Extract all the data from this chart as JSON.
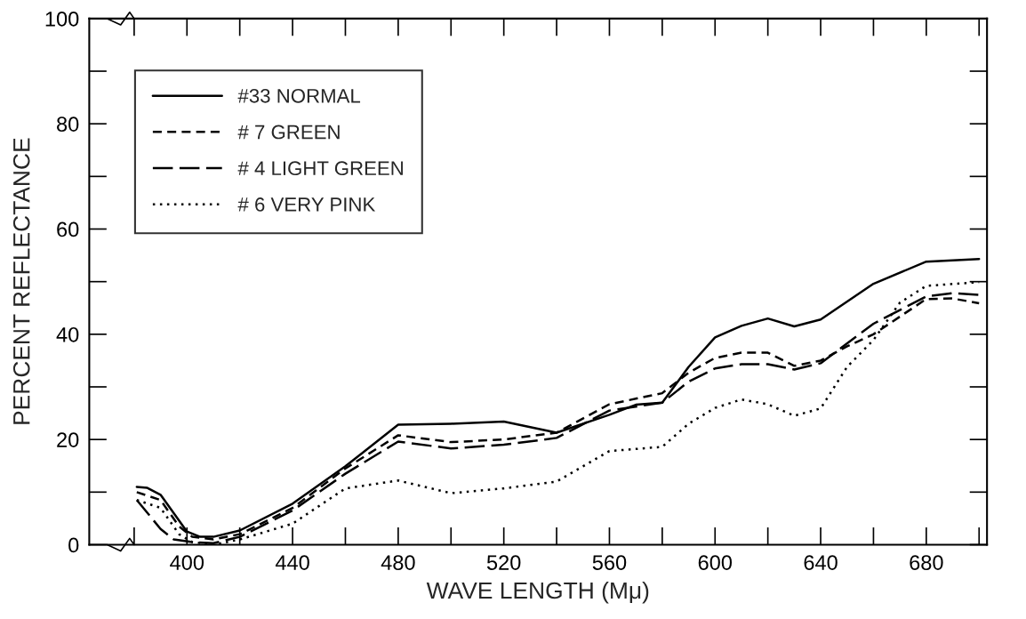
{
  "chart_data": {
    "type": "line",
    "xlabel": "WAVE LENGTH (Mμ)",
    "ylabel": "PERCENT REFLECTANCE",
    "xlim": [
      363,
      703
    ],
    "ylim": [
      0,
      100
    ],
    "xticks": [
      400,
      440,
      480,
      520,
      560,
      600,
      640,
      680
    ],
    "yticks": [
      0,
      20,
      40,
      60,
      80,
      100
    ],
    "grid": false,
    "legend": "top left",
    "series": [
      {
        "name": "#33 NORMAL",
        "color": "#000000",
        "line_style": "solid",
        "x": [
          381,
          385,
          390,
          395,
          400,
          405,
          410,
          420,
          440,
          460,
          480,
          500,
          520,
          540,
          560,
          570,
          580,
          590,
          600,
          610,
          620,
          630,
          640,
          660,
          680,
          700
        ],
        "values": [
          11,
          10.8,
          9.5,
          6,
          2.5,
          1.5,
          1.5,
          2.7,
          7.8,
          14.9,
          22.8,
          23,
          23.4,
          21.3,
          24.7,
          26.6,
          27,
          33.8,
          39.4,
          41.6,
          43,
          41.5,
          42.8,
          49.6,
          53.8,
          54.3
        ]
      },
      {
        "name": "# 7 GREEN",
        "color": "#000000",
        "line_style": "dashed",
        "x": [
          381,
          390,
          397,
          402,
          410,
          420,
          440,
          460,
          480,
          500,
          520,
          540,
          560,
          580,
          590,
          600,
          610,
          620,
          630,
          640,
          650,
          660,
          680,
          690,
          700
        ],
        "values": [
          10,
          8.5,
          3.5,
          1.5,
          1,
          2,
          7,
          14.5,
          20.8,
          19.5,
          20,
          21.3,
          26.7,
          28.8,
          32.7,
          35.5,
          36.5,
          36.5,
          34,
          35,
          37.7,
          40,
          46.7,
          46.8,
          45.9
        ]
      },
      {
        "name": "# 4 LIGHT GREEN",
        "color": "#000000",
        "line_style": "longdash",
        "x": [
          381,
          390,
          395,
          402,
          410,
          420,
          440,
          460,
          480,
          500,
          520,
          540,
          560,
          580,
          590,
          600,
          610,
          620,
          630,
          640,
          660,
          680,
          690,
          700
        ],
        "values": [
          8.5,
          3,
          1,
          0.5,
          0.3,
          1.5,
          6.5,
          13.5,
          19.6,
          18.3,
          19,
          20.3,
          25.5,
          27,
          31,
          33.5,
          34.3,
          34.3,
          33.3,
          34.5,
          42,
          47.2,
          47.8,
          47.5
        ]
      },
      {
        "name": "# 6 VERY PINK",
        "color": "#000000",
        "line_style": "dotted",
        "x": [
          381,
          390,
          397,
          402,
          410,
          420,
          440,
          460,
          480,
          500,
          520,
          540,
          560,
          580,
          590,
          600,
          610,
          620,
          630,
          640,
          650,
          660,
          670,
          680,
          700
        ],
        "values": [
          8.5,
          7,
          2,
          0.5,
          0,
          1,
          4,
          10.7,
          12.2,
          9.8,
          10.7,
          12,
          17.8,
          18.6,
          23,
          26,
          27.6,
          26.7,
          24.5,
          25.9,
          33.8,
          38.9,
          46,
          49.2,
          49.9
        ]
      }
    ]
  }
}
